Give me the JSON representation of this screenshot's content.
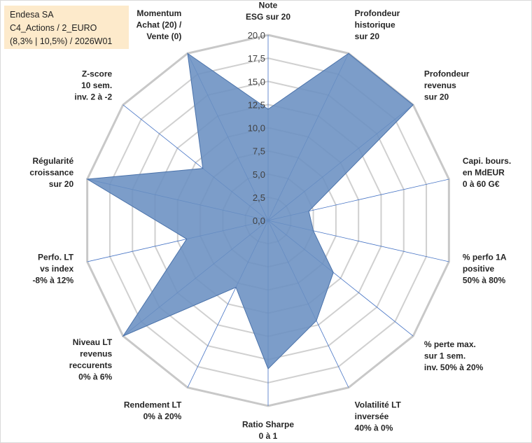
{
  "title_box": {
    "line1": "Endesa SA",
    "line2": "C4_Actions / 2_EURO",
    "line3": "(8,3% | 10,5%) / 2026W01"
  },
  "colors": {
    "fill": "#6a8fc2",
    "stroke": "#4a72aa",
    "grid": "#d0d0d0",
    "spoke": "#4472c4",
    "title_bg": "#fdeacb"
  },
  "chart_data": {
    "type": "radar",
    "rmin": 0,
    "rmax": 20,
    "tick_labels": [
      "0,0",
      "2,5",
      "5,0",
      "7,5",
      "10,0",
      "12,5",
      "15,0",
      "17,5",
      "20,0"
    ],
    "axes": [
      {
        "label": [
          "Note",
          "ESG sur 20"
        ],
        "value": 12
      },
      {
        "label": [
          "Profondeur",
          "historique",
          "sur 20"
        ],
        "value": 20
      },
      {
        "label": [
          "Profondeur",
          "revenus",
          "sur 20"
        ],
        "value": 20
      },
      {
        "label": [
          "Capi. bours.",
          "en MdEUR",
          "0 à 60 G€"
        ],
        "value": 4.5
      },
      {
        "label": [
          "% perfo 1A",
          "positive",
          "50% à 80%"
        ],
        "value": 5
      },
      {
        "label": [
          "% perte max.",
          "sur 1 sem.",
          "inv. 50% à 20%"
        ],
        "value": 9
      },
      {
        "label": [
          "Volatilité LT",
          "inversée",
          "40% à 0%"
        ],
        "value": 12
      },
      {
        "label": [
          "Ratio Sharpe",
          "0 à 1"
        ],
        "value": 16
      },
      {
        "label": [
          "Rendement LT",
          "0% à 20%"
        ],
        "value": 8
      },
      {
        "label": [
          "Niveau LT",
          "revenus",
          "reccurents",
          "0% à 6%"
        ],
        "value": 20
      },
      {
        "label": [
          "Perfo. LT",
          "vs index",
          "-8% à 12%"
        ],
        "value": 9
      },
      {
        "label": [
          "Régularité",
          "croissance",
          "sur 20"
        ],
        "value": 20
      },
      {
        "label": [
          "Z-score",
          "10 sem.",
          "inv. 2 à -2"
        ],
        "value": 9
      },
      {
        "label": [
          "Momentum",
          "Achat (20) /",
          "Vente (0)"
        ],
        "value": 20
      }
    ]
  }
}
